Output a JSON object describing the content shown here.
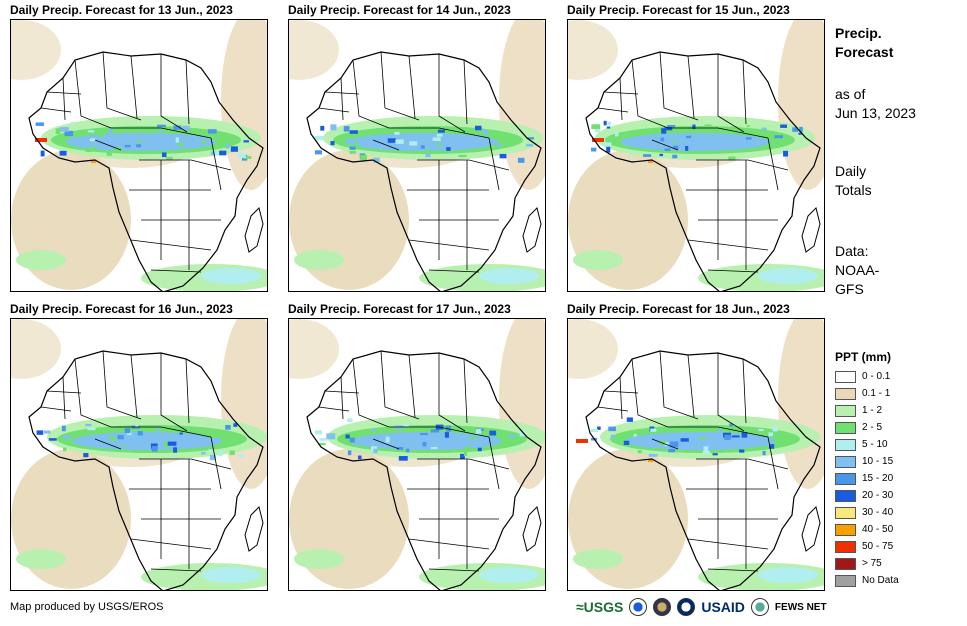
{
  "panels": [
    {
      "title": "Daily Precip. Forecast for 13 Jun., 2023"
    },
    {
      "title": "Daily Precip. Forecast for 14 Jun., 2023"
    },
    {
      "title": "Daily Precip. Forecast for 15 Jun., 2023"
    },
    {
      "title": "Daily Precip. Forecast for 16 Jun., 2023"
    },
    {
      "title": "Daily Precip. Forecast for 17 Jun., 2023"
    },
    {
      "title": "Daily Precip. Forecast for 18 Jun., 2023"
    }
  ],
  "sidebar": {
    "title_line1": "Precip.",
    "title_line2": "Forecast",
    "asof_line1": "as of",
    "asof_line2": "Jun 13, 2023",
    "totals_line1": "Daily",
    "totals_line2": "Totals",
    "data_line1": "Data:",
    "data_line2": "NOAA-",
    "data_line3": "GFS"
  },
  "legend": {
    "title": "PPT (mm)",
    "items": [
      {
        "label": "0 - 0.1",
        "color": "#ffffff"
      },
      {
        "label": "0.1 - 1",
        "color": "#e8d8b8"
      },
      {
        "label": "1 - 2",
        "color": "#b8f0b0"
      },
      {
        "label": "2 - 5",
        "color": "#70e070"
      },
      {
        "label": "5 - 10",
        "color": "#b0eef0"
      },
      {
        "label": "10 - 15",
        "color": "#80c0f0"
      },
      {
        "label": "15 - 20",
        "color": "#4a96e8"
      },
      {
        "label": "20 - 30",
        "color": "#1a5ce0"
      },
      {
        "label": "30 - 40",
        "color": "#f8e880"
      },
      {
        "label": "40 - 50",
        "color": "#f8a000"
      },
      {
        "label": "50 - 75",
        "color": "#f03000"
      },
      {
        "label": "> 75",
        "color": "#a01818"
      },
      {
        "label": "No Data",
        "color": "#a0a0a0"
      }
    ]
  },
  "footer": {
    "credit": "Map produced by USGS/EROS",
    "logo_usgs": "≈USGS",
    "logo_usaid": "USAID",
    "logo_fews": "FEWS NET"
  }
}
